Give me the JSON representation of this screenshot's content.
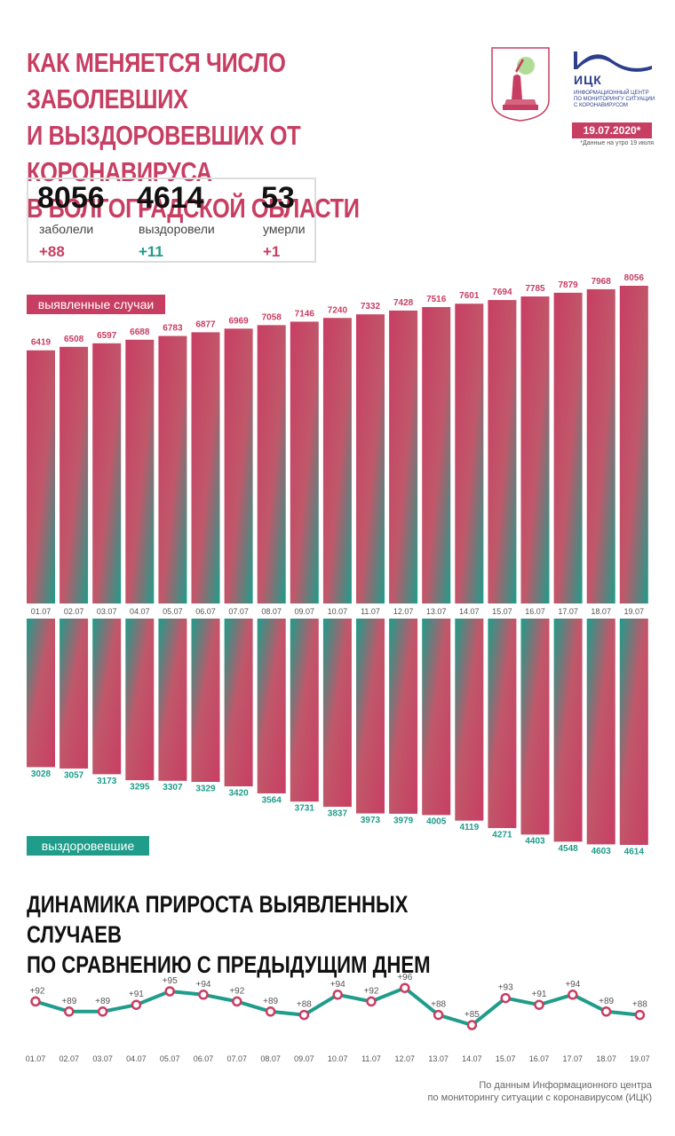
{
  "title": {
    "line1": "КАК МЕНЯЕТСЯ ЧИСЛО ЗАБОЛЕВШИХ",
    "line2": "И ВЫЗДОРОВЕВШИХ ОТ КОРОНАВИРУСА",
    "line3": "В ВОЛГОГРАДСКОЙ ОБЛАСТИ"
  },
  "logo": {
    "abbr": "ИЦК",
    "line1": "ИНФОРМАЦИОННЫЙ ЦЕНТР",
    "line2": "ПО МОНИТОРИНГУ СИТУАЦИИ",
    "line3": "С КОРОНАВИРУСОМ"
  },
  "date": "19.07.2020*",
  "date_note": "*Данные на утро 19 июля",
  "stats": {
    "sick": {
      "value": "8056",
      "label": "заболели",
      "delta": "+88"
    },
    "recovered": {
      "value": "4614",
      "label": "выздоровели",
      "delta": "+11"
    },
    "died": {
      "value": "53",
      "label": "умерли",
      "delta": "+1"
    }
  },
  "colors": {
    "accent": "#c83e63",
    "teal": "#1f9c8a",
    "text": "#111111"
  },
  "chart_data": [
    {
      "type": "bar",
      "label": "выявленные случаи",
      "categories": [
        "01.07",
        "02.07",
        "03.07",
        "04.07",
        "05.07",
        "06.07",
        "07.07",
        "08.07",
        "09.07",
        "10.07",
        "11.07",
        "12.07",
        "13.07",
        "14.07",
        "15.07",
        "16.07",
        "17.07",
        "18.07",
        "19.07"
      ],
      "values": [
        6419,
        6508,
        6597,
        6688,
        6783,
        6877,
        6969,
        7058,
        7146,
        7240,
        7332,
        7428,
        7516,
        7601,
        7694,
        7785,
        7879,
        7968,
        8056
      ]
    },
    {
      "type": "bar",
      "label": "выздоровевшие",
      "categories": [
        "01.07",
        "02.07",
        "03.07",
        "04.07",
        "05.07",
        "06.07",
        "07.07",
        "08.07",
        "09.07",
        "10.07",
        "11.07",
        "12.07",
        "13.07",
        "14.07",
        "15.07",
        "16.07",
        "17.07",
        "18.07",
        "19.07"
      ],
      "values": [
        3028,
        3057,
        3173,
        3295,
        3307,
        3329,
        3420,
        3564,
        3731,
        3837,
        3973,
        3979,
        4005,
        4119,
        4271,
        4403,
        4548,
        4603,
        4614
      ]
    },
    {
      "type": "line",
      "title": "ДИНАМИКА ПРИРОСТА ВЫЯВЛЕННЫХ СЛУЧАЕВ ПО СРАВНЕНИЮ С ПРЕДЫДУЩИМ ДНЕМ",
      "categories": [
        "01.07",
        "02.07",
        "03.07",
        "04.07",
        "05.07",
        "06.07",
        "07.07",
        "08.07",
        "09.07",
        "10.07",
        "11.07",
        "12.07",
        "13.07",
        "14.07",
        "15.07",
        "16.07",
        "17.07",
        "18.07",
        "19.07"
      ],
      "values": [
        92,
        89,
        89,
        91,
        95,
        94,
        92,
        89,
        88,
        94,
        92,
        96,
        88,
        85,
        93,
        91,
        94,
        89,
        88
      ],
      "point_labels": [
        "+92",
        "+89",
        "+89",
        "+91",
        "+95",
        "+94",
        "+92",
        "+89",
        "+88",
        "+94",
        "+92",
        "+96",
        "+88",
        "+85",
        "+93",
        "+91",
        "+94",
        "+89",
        "+88"
      ]
    }
  ],
  "growth_title": {
    "line1": "ДИНАМИКА ПРИРОСТА ВЫЯВЛЕННЫХ СЛУЧАЕВ",
    "line2": "ПО СРАВНЕНИЮ С ПРЕДЫДУЩИМ ДНЕМ"
  },
  "source": {
    "line1": "По данным Информационного центра",
    "line2": "по мониторингу ситуации с коронавирусом (ИЦК)"
  }
}
